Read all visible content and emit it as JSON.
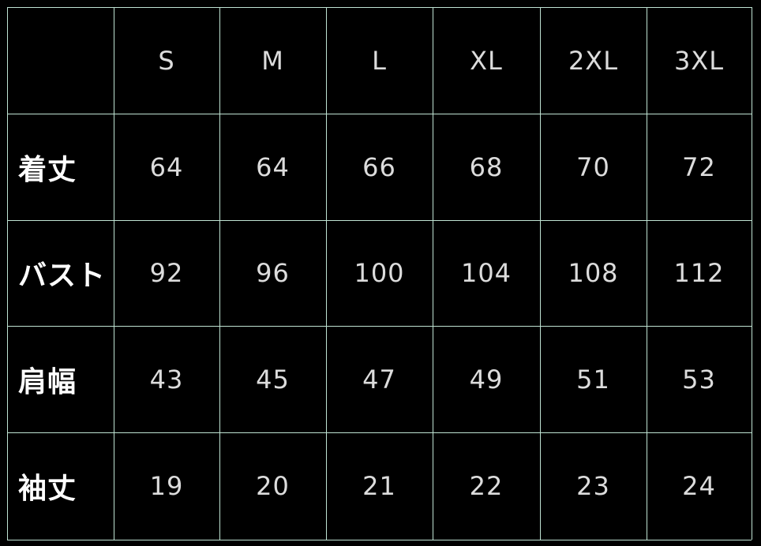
{
  "table": {
    "columns": [
      "",
      "S",
      "M",
      "L",
      "XL",
      "2XL",
      "3XL"
    ],
    "rows": [
      {
        "label": "着丈",
        "values": [
          "64",
          "64",
          "66",
          "68",
          "70",
          "72"
        ]
      },
      {
        "label": "バスト",
        "values": [
          "92",
          "96",
          "100",
          "104",
          "108",
          "112"
        ]
      },
      {
        "label": "肩幅",
        "values": [
          "43",
          "45",
          "47",
          "49",
          "51",
          "53"
        ]
      },
      {
        "label": "袖丈",
        "values": [
          "19",
          "20",
          "21",
          "22",
          "23",
          "24"
        ]
      }
    ],
    "colors": {
      "background": "#000000",
      "grid": "#bfe3d3",
      "text": "#ffffff"
    }
  }
}
